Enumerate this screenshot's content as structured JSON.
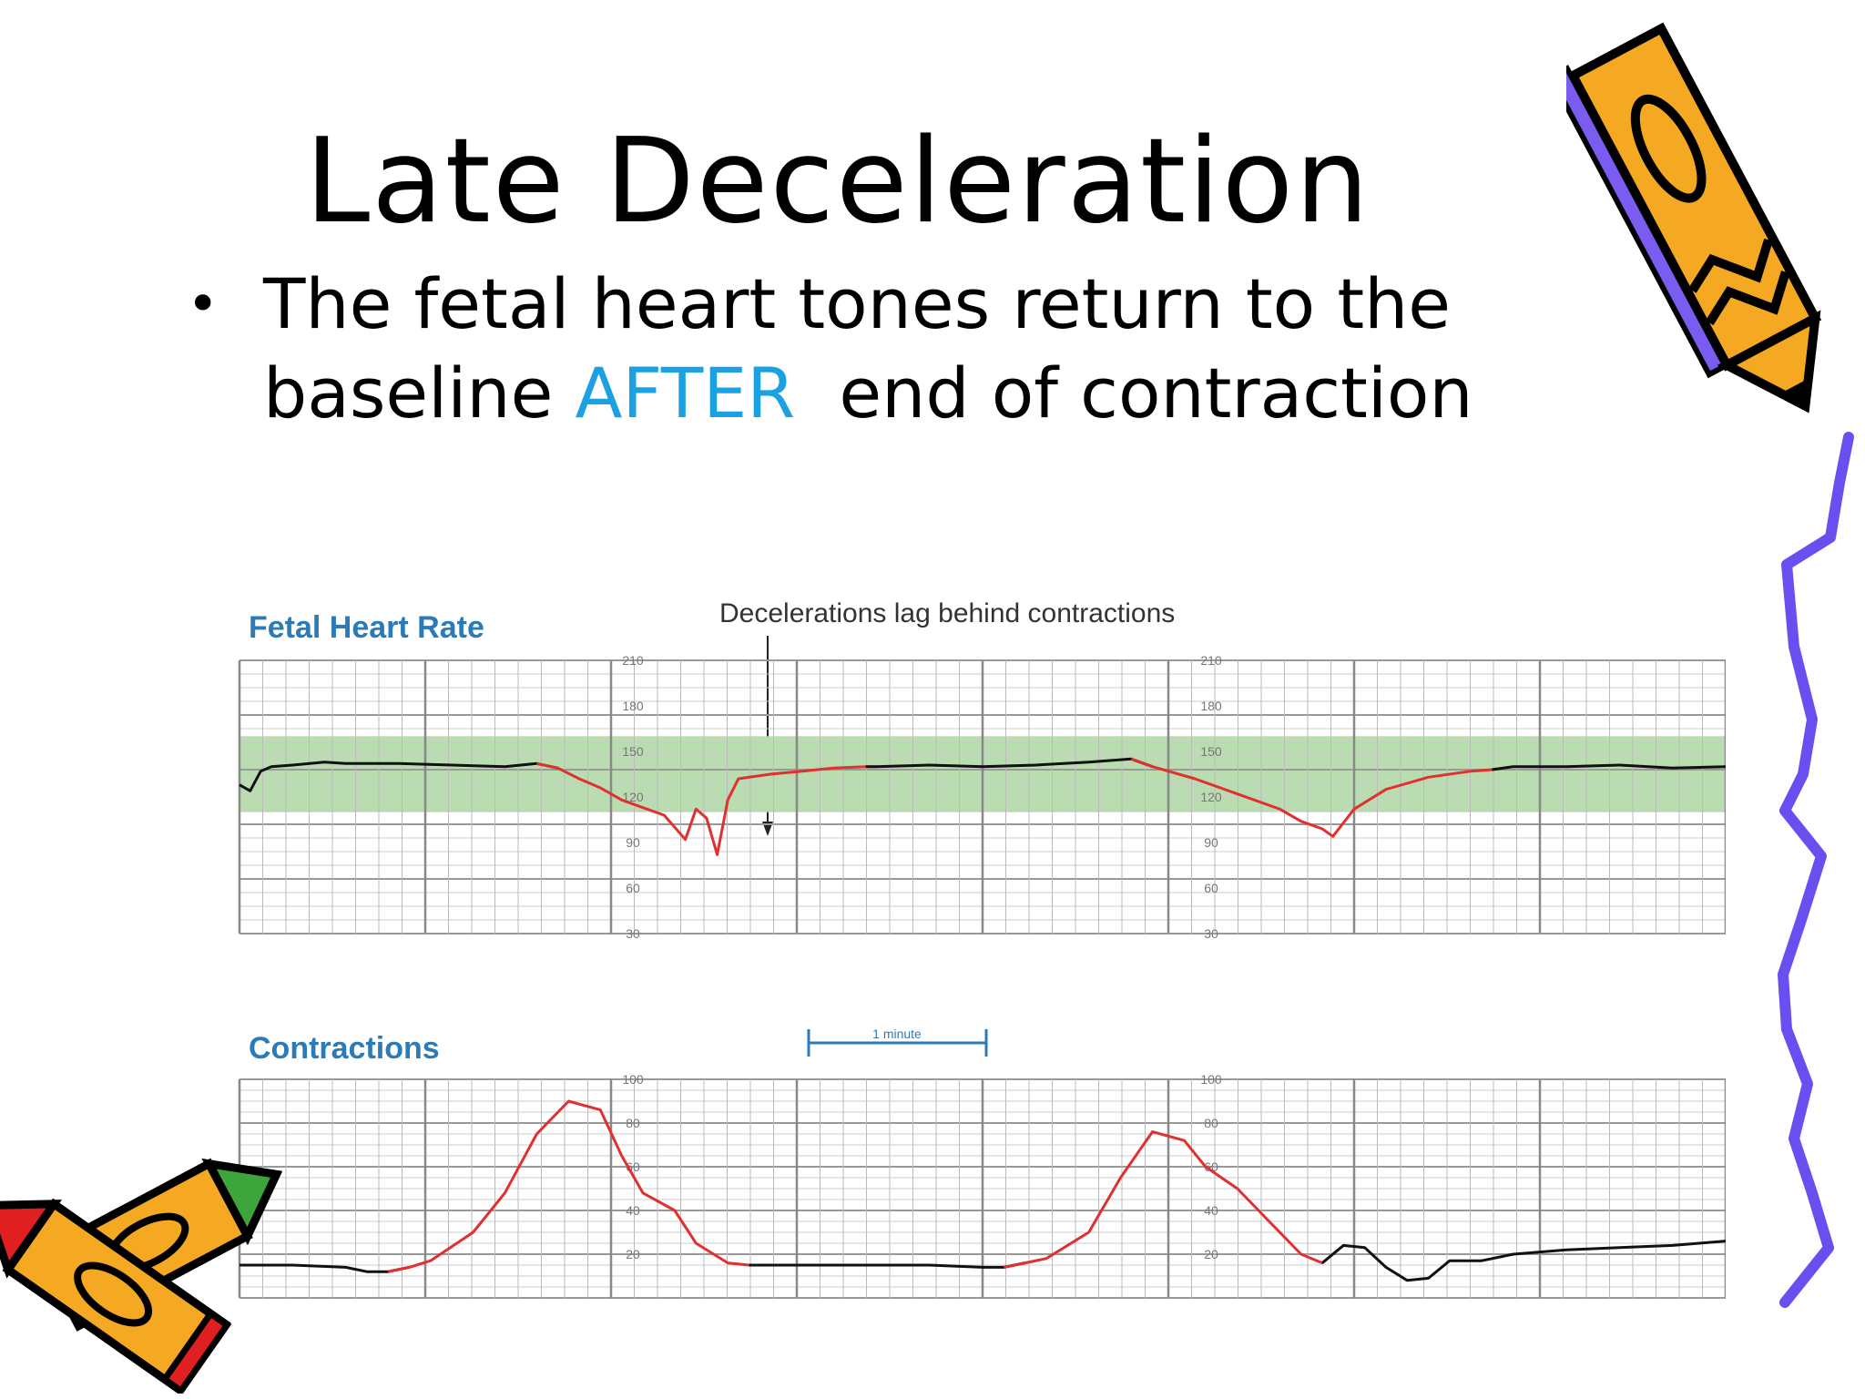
{
  "title": "Late Deceleration",
  "bullet": {
    "line1": "The fetal heart tones return to the",
    "line2_before": "baseline ",
    "line2_accent": "AFTER",
    "line2_after": "  end of contraction"
  },
  "colors": {
    "accent": "#1ba1e2",
    "trace_black": "#111111",
    "trace_red": "#e03030",
    "normal_band": "#b9dcb0",
    "label_blue": "#2b7bb9",
    "zigzag": "#6b4ef0"
  },
  "figure": {
    "fhr_label": "Fetal Heart Rate",
    "annotation": "Decelerations lag behind contractions",
    "contractions_label": "Contractions",
    "scale_bar_label": "1 minute"
  },
  "chart_data": [
    {
      "type": "line",
      "title": "Fetal Heart Rate",
      "ylim": [
        30,
        210
      ],
      "yticks": [
        210,
        180,
        150,
        120,
        90,
        60,
        30
      ],
      "grid": true,
      "normal_band": [
        110,
        160
      ],
      "series": [
        {
          "values": [
            [
              0,
              128
            ],
            [
              1,
              124
            ],
            [
              2,
              137
            ],
            [
              3,
              140
            ],
            [
              5,
              141
            ],
            [
              8,
              143
            ],
            [
              10,
              142
            ],
            [
              15,
              142
            ],
            [
              20,
              141
            ],
            [
              25,
              140
            ],
            [
              28,
              142
            ],
            [
              30,
              139
            ],
            [
              32,
              132
            ],
            [
              34,
              126
            ],
            [
              36,
              118
            ],
            [
              38,
              113
            ],
            [
              40,
              108
            ],
            [
              42,
              92
            ],
            [
              43,
              112
            ],
            [
              44,
              106
            ],
            [
              45,
              82
            ],
            [
              46,
              118
            ],
            [
              47,
              132
            ],
            [
              50,
              135
            ],
            [
              53,
              137
            ],
            [
              56,
              139
            ],
            [
              59,
              140
            ],
            [
              60,
              140
            ],
            [
              65,
              141
            ],
            [
              70,
              140
            ],
            [
              75,
              141
            ],
            [
              80,
              143
            ],
            [
              84,
              145
            ],
            [
              86,
              140
            ],
            [
              90,
              132
            ],
            [
              94,
              122
            ],
            [
              98,
              112
            ],
            [
              100,
              104
            ],
            [
              102,
              99
            ],
            [
              103,
              94
            ],
            [
              105,
              112
            ],
            [
              108,
              125
            ],
            [
              112,
              133
            ],
            [
              116,
              137
            ],
            [
              118,
              138
            ],
            [
              120,
              140
            ],
            [
              125,
              140
            ],
            [
              130,
              141
            ],
            [
              135,
              139
            ],
            [
              140,
              140
            ]
          ]
        }
      ]
    },
    {
      "type": "line",
      "title": "Contractions",
      "ylim": [
        0,
        100
      ],
      "yticks": [
        100,
        80,
        60,
        40,
        20
      ],
      "grid": true,
      "series": [
        {
          "values": [
            [
              0,
              15
            ],
            [
              5,
              15
            ],
            [
              10,
              14
            ],
            [
              12,
              12
            ],
            [
              14,
              12
            ],
            [
              16,
              14
            ],
            [
              18,
              17
            ],
            [
              22,
              30
            ],
            [
              25,
              48
            ],
            [
              28,
              75
            ],
            [
              31,
              90
            ],
            [
              34,
              86
            ],
            [
              36,
              65
            ],
            [
              38,
              48
            ],
            [
              41,
              40
            ],
            [
              43,
              25
            ],
            [
              46,
              16
            ],
            [
              48,
              15
            ],
            [
              52,
              15
            ],
            [
              60,
              15
            ],
            [
              65,
              15
            ],
            [
              70,
              14
            ],
            [
              72,
              14
            ],
            [
              74,
              16
            ],
            [
              76,
              18
            ],
            [
              80,
              30
            ],
            [
              83,
              55
            ],
            [
              86,
              76
            ],
            [
              89,
              72
            ],
            [
              91,
              60
            ],
            [
              94,
              50
            ],
            [
              97,
              35
            ],
            [
              100,
              20
            ],
            [
              102,
              16
            ],
            [
              104,
              24
            ],
            [
              106,
              23
            ],
            [
              108,
              14
            ],
            [
              110,
              8
            ],
            [
              112,
              9
            ],
            [
              114,
              17
            ],
            [
              117,
              17
            ],
            [
              120,
              20
            ],
            [
              125,
              22
            ],
            [
              130,
              23
            ],
            [
              135,
              24
            ],
            [
              140,
              26
            ]
          ]
        }
      ]
    }
  ]
}
